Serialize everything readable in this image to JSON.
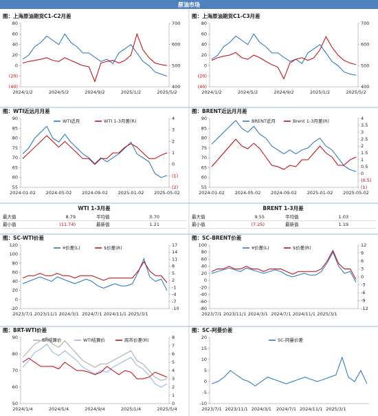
{
  "header": {
    "title": "原油市场"
  },
  "tables": [
    {
      "title": "WTI 1-3月差",
      "rows": [
        [
          "最大值",
          "8.79",
          "平均值",
          "0.70"
        ],
        [
          "最小值",
          "(11.74)",
          "最新值",
          "1.21"
        ]
      ]
    },
    {
      "title": "BRENT 1-3月差",
      "rows": [
        [
          "最大值",
          "9.55",
          "平均值",
          "1.03"
        ],
        [
          "最小值",
          "(7.25)",
          "最新值",
          "1.19"
        ]
      ]
    }
  ],
  "chart_data": [
    {
      "type": "line",
      "title": "图：上海原油期货C1-C2月差",
      "categories": [
        "2024/1/2",
        null,
        null,
        null,
        null,
        null,
        "2024/5/2",
        null,
        null,
        null,
        null,
        null,
        "2024/9/2",
        null,
        null,
        null,
        null,
        null,
        "2025/1/2",
        null,
        null,
        null,
        null,
        null,
        "2025/5/2"
      ],
      "ylim": [
        -40,
        80
      ],
      "yticks": [
        {
          "value": -40,
          "label": "(40)"
        },
        {
          "value": -20,
          "label": "(20)"
        },
        0,
        20,
        40,
        60,
        80
      ],
      "y2lim": [
        400,
        700
      ],
      "y2ticks": [
        400,
        500,
        600,
        700
      ],
      "series": [
        {
          "color": "#1f6fc0",
          "axis": "y2",
          "values": [
            530,
            550,
            590,
            610,
            640,
            620,
            600,
            650,
            610,
            590,
            560,
            560,
            540,
            520,
            530,
            510,
            560,
            580,
            600,
            560,
            520,
            500,
            470,
            460,
            450
          ]
        },
        {
          "color": "#c00000",
          "values": [
            5,
            8,
            10,
            12,
            15,
            10,
            8,
            15,
            10,
            5,
            0,
            -2,
            -30,
            5,
            8,
            10,
            5,
            10,
            20,
            60,
            30,
            15,
            5,
            2,
            0
          ]
        }
      ]
    },
    {
      "type": "line",
      "title": "图：上海原油期货C1-C3月差",
      "categories": [
        "2024/1/2",
        null,
        null,
        null,
        null,
        null,
        "2024/5/2",
        null,
        null,
        null,
        null,
        null,
        "2024/9/2",
        null,
        null,
        null,
        null,
        null,
        "2025/1/2",
        null,
        null,
        null,
        null,
        null,
        "2025/5/2"
      ],
      "ylim": [
        -40,
        80
      ],
      "yticks": [
        {
          "value": -40,
          "label": "(40)"
        },
        {
          "value": -20,
          "label": "(20)"
        },
        0,
        20,
        40,
        60,
        80
      ],
      "y2lim": [
        400,
        700
      ],
      "y2ticks": [
        400,
        500,
        600,
        700
      ],
      "series": [
        {
          "color": "#1f6fc0",
          "axis": "y2",
          "values": [
            530,
            550,
            590,
            610,
            640,
            620,
            600,
            650,
            610,
            590,
            560,
            560,
            540,
            520,
            530,
            510,
            560,
            580,
            600,
            560,
            520,
            500,
            470,
            460,
            455
          ]
        },
        {
          "color": "#c00000",
          "values": [
            10,
            15,
            18,
            20,
            25,
            15,
            12,
            20,
            15,
            8,
            2,
            -3,
            -25,
            5,
            12,
            15,
            10,
            15,
            30,
            55,
            35,
            20,
            10,
            5,
            2
          ]
        }
      ]
    },
    {
      "type": "line",
      "title": "图：WTI近远月月差",
      "categories": [
        "2024-01-02",
        null,
        null,
        null,
        null,
        null,
        "2024-05-02",
        null,
        null,
        null,
        null,
        null,
        "2024-09-02",
        null,
        null,
        null,
        null,
        null,
        "2025-01-02",
        null,
        null,
        null,
        null,
        null,
        "2025-05-02"
      ],
      "ylim": [
        55,
        90
      ],
      "yticks": [
        55,
        60,
        65,
        70,
        75,
        80,
        85,
        90
      ],
      "y2lim": [
        -2,
        4
      ],
      "y2ticks": [
        {
          "value": -2,
          "label": "(2)"
        },
        {
          "value": -1,
          "label": "(1)"
        },
        0,
        1,
        2,
        3,
        4
      ],
      "series": [
        {
          "name": "WTI近月",
          "color": "#1f6fc0",
          "values": [
            72,
            75,
            80,
            83,
            86,
            80,
            78,
            82,
            78,
            75,
            72,
            70,
            67,
            70,
            68,
            70,
            72,
            75,
            78,
            72,
            70,
            68,
            62,
            60,
            61
          ]
        },
        {
          "name": "WTI 1-3月差(R)",
          "color": "#c00000",
          "axis": "y2",
          "values": [
            0.5,
            1,
            1.5,
            2,
            2.5,
            2,
            1.5,
            2,
            1.5,
            1,
            0.5,
            0.5,
            0,
            0.5,
            0.5,
            1,
            1,
            1.5,
            1.8,
            1.5,
            1,
            0.5,
            0.5,
            0.8,
            1
          ]
        }
      ]
    },
    {
      "type": "line",
      "title": "图：BRENT近远月月差",
      "categories": [
        "2024-01-02",
        null,
        null,
        null,
        null,
        null,
        "2024-05-02",
        null,
        null,
        null,
        null,
        null,
        "2024-09-02",
        null,
        null,
        null,
        null,
        null,
        "2025-01-02",
        null,
        null,
        null,
        null,
        null,
        "2025-05-02"
      ],
      "ylim": [
        55,
        90
      ],
      "yticks": [
        55,
        60,
        65,
        70,
        75,
        80,
        85,
        90
      ],
      "y2lim": [
        -1,
        4
      ],
      "y2ticks": [
        {
          "value": -1,
          "label": "(1)"
        },
        {
          "value": -0.5,
          "label": "(0.5)"
        },
        0,
        0.5,
        1,
        1.5,
        2,
        2.5,
        3,
        3.5,
        4
      ],
      "series": [
        {
          "name": "BRENT近月",
          "color": "#1f6fc0",
          "values": [
            77,
            80,
            83,
            86,
            89,
            85,
            83,
            86,
            82,
            80,
            76,
            74,
            72,
            74,
            72,
            74,
            75,
            78,
            80,
            76,
            74,
            70,
            66,
            64,
            63
          ]
        },
        {
          "name": "Brent 1-3月差(R)",
          "color": "#c00000",
          "axis": "y2",
          "values": [
            0.5,
            1,
            1.5,
            2,
            2.5,
            2,
            1.8,
            2.2,
            1.8,
            1.2,
            0.6,
            0.5,
            0.3,
            0.6,
            0.5,
            1,
            1,
            1.5,
            2,
            1.5,
            1.2,
            0.6,
            0.6,
            1,
            1.2
          ]
        }
      ]
    },
    {
      "type": "line",
      "title": "图：SC-WTI价差",
      "categories": [
        "2023/7/1",
        null,
        null,
        null,
        "2023/11/1",
        null,
        null,
        null,
        "2024/3/1",
        null,
        null,
        null,
        "2024/7/1",
        null,
        null,
        null,
        "2024/11/1",
        null,
        null,
        null,
        "2025/3/1",
        null,
        null,
        null,
        null,
        null
      ],
      "ylim": [
        -20,
        120
      ],
      "yticks": [
        -20,
        0,
        20,
        40,
        60,
        80,
        100,
        120
      ],
      "y2lim": [
        -10,
        17
      ],
      "y2ticks": [
        -10,
        -7,
        -4,
        -1,
        2,
        5,
        8,
        11,
        14,
        17
      ],
      "series": [
        {
          "name": "¥价差(L)",
          "color": "#1f6fc0",
          "values": [
            35,
            40,
            45,
            50,
            45,
            40,
            50,
            45,
            40,
            35,
            40,
            45,
            40,
            30,
            25,
            30,
            35,
            30,
            30,
            35,
            60,
            90,
            50,
            40,
            45,
            20
          ]
        },
        {
          "name": "$价差(R)",
          "color": "#c00000",
          "axis": "y2",
          "values": [
            3,
            4,
            4,
            5,
            4,
            4,
            5,
            4,
            4,
            3,
            4,
            4,
            4,
            3,
            2,
            3,
            3,
            3,
            3,
            3,
            6,
            10,
            6,
            4,
            4,
            1
          ]
        }
      ]
    },
    {
      "type": "line",
      "title": "图：SC-BRENT价差",
      "categories": [
        "2023/7/1",
        null,
        null,
        null,
        "2023/11/1",
        null,
        null,
        null,
        "2024/3/1",
        null,
        null,
        null,
        "2024/7/1",
        null,
        null,
        null,
        "2024/11/1",
        null,
        null,
        null,
        "2025/3/1",
        null,
        null,
        null,
        null,
        null
      ],
      "ylim": [
        -80,
        100
      ],
      "yticks": [
        -80,
        -60,
        -40,
        -20,
        0,
        20,
        40,
        60,
        80,
        100
      ],
      "y2lim": [
        -12,
        12
      ],
      "y2ticks": [
        -12,
        -9,
        -6,
        -3,
        0,
        3,
        6,
        9,
        12
      ],
      "series": [
        {
          "name": "¥价差(L)",
          "color": "#1f6fc0",
          "values": [
            20,
            25,
            30,
            35,
            30,
            25,
            35,
            30,
            25,
            20,
            25,
            30,
            25,
            15,
            10,
            15,
            20,
            15,
            15,
            25,
            50,
            80,
            40,
            20,
            25,
            -5
          ]
        },
        {
          "name": "$价差(R)",
          "color": "#c00000",
          "axis": "y2",
          "values": [
            2,
            3,
            3,
            4,
            3,
            3,
            4,
            3,
            3,
            2,
            3,
            3,
            3,
            2,
            1,
            2,
            2,
            2,
            2,
            3,
            6,
            10,
            5,
            3,
            3,
            -1
          ]
        }
      ]
    },
    {
      "type": "line",
      "title": "图：BRT-WTI价差",
      "categories": [
        "2024/1/4",
        null,
        null,
        null,
        null,
        null,
        "2024/5/4",
        null,
        null,
        null,
        null,
        null,
        "2024/9/4",
        null,
        null,
        null,
        null,
        null,
        "2025/1/4",
        null,
        null,
        null,
        null,
        null,
        "2025/5/4"
      ],
      "ylim": [
        50,
        90
      ],
      "yticks": [
        50,
        60,
        70,
        80,
        90
      ],
      "y2lim": [
        0,
        8
      ],
      "y2ticks": [
        0,
        1,
        2,
        3,
        4,
        5,
        6,
        7,
        8
      ],
      "series": [
        {
          "name": "BR结算价",
          "color": "#a6a6a6",
          "values": [
            78,
            82,
            86,
            88,
            90,
            86,
            84,
            88,
            84,
            80,
            76,
            74,
            72,
            74,
            74,
            76,
            78,
            80,
            82,
            76,
            74,
            70,
            66,
            64,
            65
          ]
        },
        {
          "name": "WTI结算价",
          "color": "#8fb4e0",
          "values": [
            72,
            76,
            81,
            83,
            86,
            81,
            79,
            82,
            79,
            76,
            72,
            70,
            68,
            70,
            69,
            72,
            74,
            76,
            78,
            73,
            71,
            67,
            62,
            60,
            62
          ]
        },
        {
          "name": "跨市价差(R)",
          "color": "#c00000",
          "axis": "y2",
          "values": [
            5,
            5.5,
            5,
            4.5,
            4.5,
            4.5,
            4.2,
            5,
            4.5,
            4,
            4,
            3.8,
            3.5,
            3.8,
            4.5,
            4,
            3.5,
            4,
            3.8,
            3,
            3,
            3.2,
            3.8,
            3.5,
            3.2
          ]
        }
      ]
    },
    {
      "type": "line",
      "title": "图：SC-阿曼价差",
      "categories": [
        "2023/7/1",
        null,
        null,
        null,
        "2023/11/1",
        null,
        null,
        null,
        "2024/3/1",
        null,
        null,
        null,
        "2024/7/1",
        null,
        null,
        null,
        "2024/11/1",
        null,
        null,
        null,
        "2025/3/1",
        null,
        null,
        null,
        null,
        null
      ],
      "ylim": [
        -10,
        20
      ],
      "yticks": [
        -10,
        -5,
        0,
        5,
        10,
        15,
        20
      ],
      "series": [
        {
          "name": "SC-阿曼价差",
          "color": "#1f6fc0",
          "values": [
            -1,
            0,
            2,
            5,
            3,
            1,
            0,
            -2,
            0,
            2,
            1,
            0,
            -1,
            0,
            1,
            2,
            1,
            0,
            1,
            2,
            3,
            11,
            2,
            0,
            5,
            -1
          ]
        }
      ]
    }
  ]
}
